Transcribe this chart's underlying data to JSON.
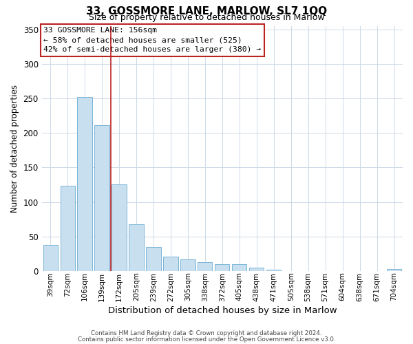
{
  "title": "33, GOSSMORE LANE, MARLOW, SL7 1QQ",
  "subtitle": "Size of property relative to detached houses in Marlow",
  "xlabel": "Distribution of detached houses by size in Marlow",
  "ylabel": "Number of detached properties",
  "bar_labels": [
    "39sqm",
    "72sqm",
    "106sqm",
    "139sqm",
    "172sqm",
    "205sqm",
    "239sqm",
    "272sqm",
    "305sqm",
    "338sqm",
    "372sqm",
    "405sqm",
    "438sqm",
    "471sqm",
    "505sqm",
    "538sqm",
    "571sqm",
    "604sqm",
    "638sqm",
    "671sqm",
    "704sqm"
  ],
  "bar_values": [
    38,
    124,
    252,
    211,
    125,
    68,
    35,
    21,
    17,
    13,
    10,
    10,
    5,
    2,
    0,
    0,
    0,
    0,
    0,
    0,
    3
  ],
  "bar_color": "#c8dff0",
  "bar_edgecolor": "#7ab5d8",
  "vline_x": 3.5,
  "vline_color": "#bb2222",
  "ylim": [
    0,
    355
  ],
  "yticks": [
    0,
    50,
    100,
    150,
    200,
    250,
    300,
    350
  ],
  "annotation_title": "33 GOSSMORE LANE: 156sqm",
  "annotation_line1": "← 58% of detached houses are smaller (525)",
  "annotation_line2": "42% of semi-detached houses are larger (380) →",
  "annotation_box_color": "#ffffff",
  "annotation_box_edgecolor": "#bb2222",
  "footer1": "Contains HM Land Registry data © Crown copyright and database right 2024.",
  "footer2": "Contains public sector information licensed under the Open Government Licence v3.0.",
  "background_color": "#ffffff",
  "grid_color": "#ccd9e8"
}
